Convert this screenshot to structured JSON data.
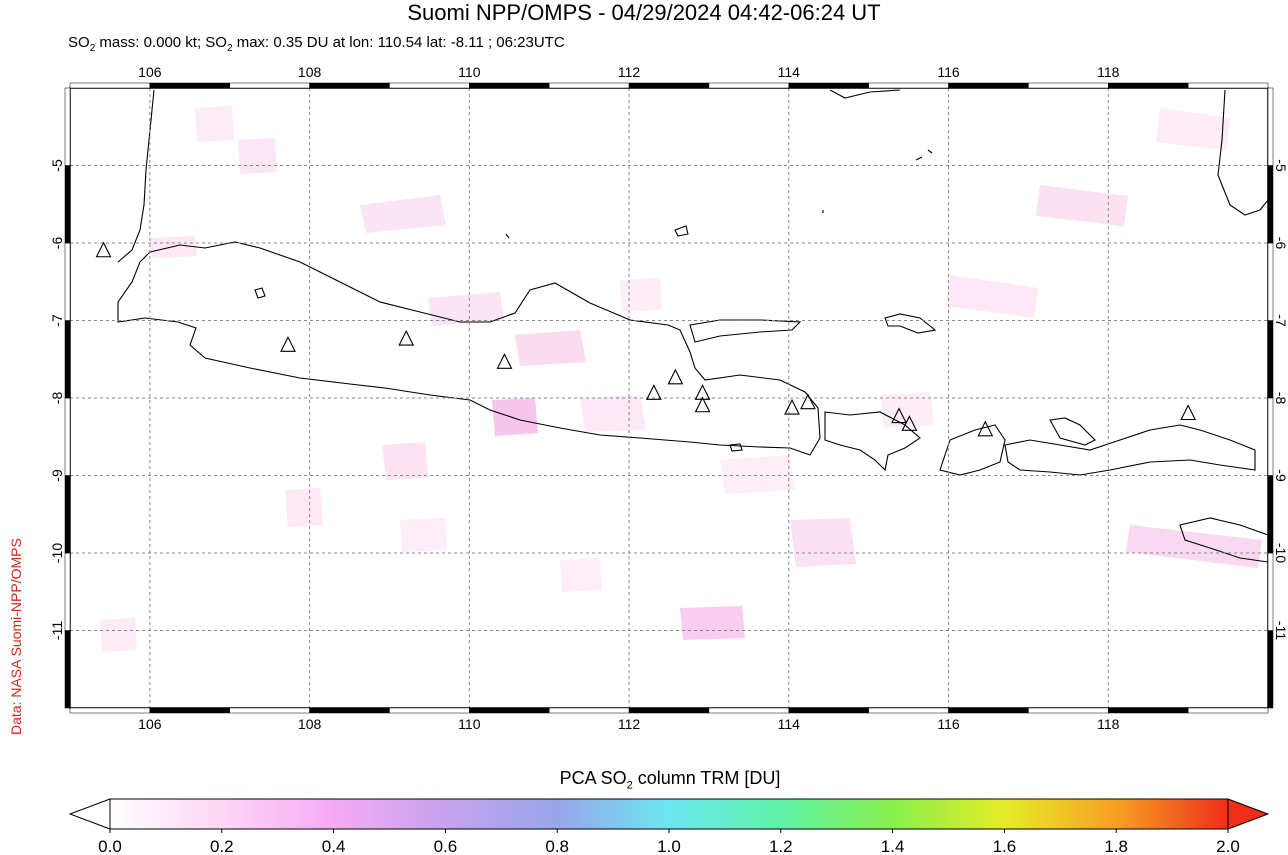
{
  "header": {
    "title": "Suomi NPP/OMPS - 04/29/2024 04:42-06:24 UT",
    "subtitle_prefix": "SO",
    "subtitle_sub": "2",
    "subtitle_mid": " mass: 0.000 kt; SO",
    "subtitle_rest": " max: 0.35 DU at lon: 110.54 lat: -8.11 ; 06:23UTC"
  },
  "credit": "Data: NASA Suomi-NPP/OMPS",
  "map": {
    "lon_range": [
      105,
      120
    ],
    "lat_range": [
      -12,
      -4
    ],
    "lon_ticks": [
      "106",
      "108",
      "110",
      "112",
      "114",
      "116",
      "118"
    ],
    "lat_ticks": [
      "-5",
      "-6",
      "-7",
      "-8",
      "-9",
      "-10",
      "-11"
    ],
    "volcanoes": [
      [
        105.42,
        -6.1
      ],
      [
        107.73,
        -7.32
      ],
      [
        109.21,
        -7.24
      ],
      [
        110.44,
        -7.54
      ],
      [
        112.31,
        -7.94
      ],
      [
        112.58,
        -7.74
      ],
      [
        112.92,
        -7.94
      ],
      [
        112.92,
        -8.1
      ],
      [
        114.04,
        -8.13
      ],
      [
        114.24,
        -8.06
      ],
      [
        115.38,
        -8.24
      ],
      [
        115.51,
        -8.34
      ],
      [
        116.46,
        -8.41
      ],
      [
        119.0,
        -8.2
      ]
    ]
  },
  "colorbar": {
    "title_prefix": "PCA SO",
    "title_sub": "2",
    "title_suffix": " column TRM [DU]",
    "tick_labels": [
      "0.0",
      "0.2",
      "0.4",
      "0.6",
      "0.8",
      "1.0",
      "1.2",
      "1.4",
      "1.6",
      "1.8",
      "2.0"
    ],
    "colors": [
      "#ffffff",
      "#ffd6f6",
      "#f6aaf6",
      "#c7a2ee",
      "#98a6ea",
      "#6ce6f2",
      "#60f2a8",
      "#88f04c",
      "#e6ec28",
      "#f7a022",
      "#ef2e1a"
    ]
  }
}
